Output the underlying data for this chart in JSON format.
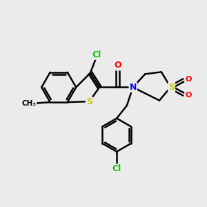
{
  "bg_color": "#ebebeb",
  "bond_color": "#000000",
  "bond_width": 1.8,
  "atom_colors": {
    "Cl": "#00cc00",
    "S": "#cccc00",
    "N": "#0000ff",
    "O": "#ff0000",
    "C": "#000000"
  },
  "font_size_atom": 9
}
